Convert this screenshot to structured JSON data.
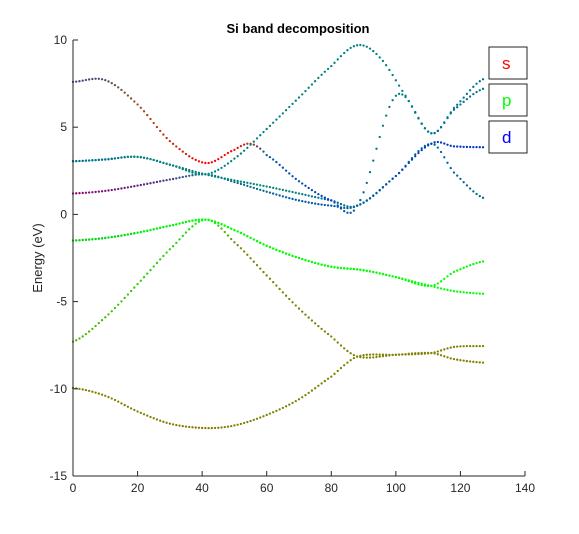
{
  "chart_data": {
    "type": "scatter",
    "title": "Si band decomposition",
    "xlabel": "",
    "ylabel": "Energy (eV)",
    "xlim": [
      0,
      140
    ],
    "ylim": [
      -15,
      10
    ],
    "xticks": [
      0,
      20,
      40,
      60,
      80,
      100,
      120,
      140
    ],
    "yticks": [
      -15,
      -10,
      -5,
      0,
      5,
      10
    ],
    "grid": false,
    "legend_placement": "top-right",
    "legend": [
      {
        "label": "s",
        "color": "#ff0000"
      },
      {
        "label": "p",
        "color": "#00ff00"
      },
      {
        "label": "d",
        "color": "#0000ff"
      }
    ],
    "series": [
      {
        "band": 1,
        "points": [
          {
            "x": 0,
            "y": -9.95,
            "s": 0.5,
            "p": 0.5,
            "d": 0.0
          },
          {
            "x": 10,
            "y": -10.4,
            "s": 0.5,
            "p": 0.5,
            "d": 0.0
          },
          {
            "x": 20,
            "y": -11.3,
            "s": 0.5,
            "p": 0.5,
            "d": 0.0
          },
          {
            "x": 30,
            "y": -12.0,
            "s": 0.5,
            "p": 0.5,
            "d": 0.0
          },
          {
            "x": 41,
            "y": -12.25,
            "s": 0.55,
            "p": 0.45,
            "d": 0.0
          },
          {
            "x": 50,
            "y": -12.1,
            "s": 0.5,
            "p": 0.5,
            "d": 0.0
          },
          {
            "x": 60,
            "y": -11.5,
            "s": 0.5,
            "p": 0.5,
            "d": 0.0
          },
          {
            "x": 70,
            "y": -10.6,
            "s": 0.5,
            "p": 0.5,
            "d": 0.0
          },
          {
            "x": 80,
            "y": -9.3,
            "s": 0.5,
            "p": 0.5,
            "d": 0.0
          },
          {
            "x": 88,
            "y": -8.15,
            "s": 0.5,
            "p": 0.5,
            "d": 0.0
          },
          {
            "x": 100,
            "y": -8.05,
            "s": 0.5,
            "p": 0.5,
            "d": 0.0
          },
          {
            "x": 111,
            "y": -7.95,
            "s": 0.5,
            "p": 0.5,
            "d": 0.0
          },
          {
            "x": 118,
            "y": -8.3,
            "s": 0.5,
            "p": 0.5,
            "d": 0.0
          },
          {
            "x": 127,
            "y": -8.5,
            "s": 0.5,
            "p": 0.5,
            "d": 0.0
          }
        ]
      },
      {
        "band": 2,
        "points": [
          {
            "x": 0,
            "y": -7.3,
            "s": 0.3,
            "p": 0.7,
            "d": 0.0
          },
          {
            "x": 10,
            "y": -5.9,
            "s": 0.25,
            "p": 0.75,
            "d": 0.0
          },
          {
            "x": 20,
            "y": -4.0,
            "s": 0.2,
            "p": 0.8,
            "d": 0.0
          },
          {
            "x": 30,
            "y": -2.0,
            "s": 0.15,
            "p": 0.85,
            "d": 0.0
          },
          {
            "x": 41,
            "y": -0.3,
            "s": 0.0,
            "p": 1.0,
            "d": 0.0
          },
          {
            "x": 50,
            "y": -1.6,
            "s": 0.45,
            "p": 0.55,
            "d": 0.0
          },
          {
            "x": 60,
            "y": -3.5,
            "s": 0.5,
            "p": 0.5,
            "d": 0.0
          },
          {
            "x": 70,
            "y": -5.4,
            "s": 0.5,
            "p": 0.5,
            "d": 0.0
          },
          {
            "x": 80,
            "y": -7.0,
            "s": 0.5,
            "p": 0.5,
            "d": 0.0
          },
          {
            "x": 88,
            "y": -8.15,
            "s": 0.5,
            "p": 0.5,
            "d": 0.0
          },
          {
            "x": 100,
            "y": -8.05,
            "s": 0.5,
            "p": 0.5,
            "d": 0.0
          },
          {
            "x": 111,
            "y": -7.95,
            "s": 0.5,
            "p": 0.5,
            "d": 0.0
          },
          {
            "x": 118,
            "y": -7.6,
            "s": 0.5,
            "p": 0.5,
            "d": 0.0
          },
          {
            "x": 127,
            "y": -7.55,
            "s": 0.5,
            "p": 0.5,
            "d": 0.0
          }
        ]
      },
      {
        "band": 3,
        "points": [
          {
            "x": 0,
            "y": -1.5,
            "s": 0.0,
            "p": 0.9,
            "d": 0.1
          },
          {
            "x": 10,
            "y": -1.35,
            "s": 0.0,
            "p": 0.9,
            "d": 0.1
          },
          {
            "x": 20,
            "y": -1.05,
            "s": 0.0,
            "p": 0.95,
            "d": 0.05
          },
          {
            "x": 30,
            "y": -0.65,
            "s": 0.0,
            "p": 0.95,
            "d": 0.05
          },
          {
            "x": 41,
            "y": -0.3,
            "s": 0.0,
            "p": 1.0,
            "d": 0.0
          },
          {
            "x": 50,
            "y": -0.9,
            "s": 0.0,
            "p": 1.0,
            "d": 0.0
          },
          {
            "x": 60,
            "y": -1.8,
            "s": 0.0,
            "p": 1.0,
            "d": 0.0
          },
          {
            "x": 70,
            "y": -2.5,
            "s": 0.0,
            "p": 1.0,
            "d": 0.0
          },
          {
            "x": 80,
            "y": -3.0,
            "s": 0.0,
            "p": 1.0,
            "d": 0.0
          },
          {
            "x": 90,
            "y": -3.2,
            "s": 0.0,
            "p": 1.0,
            "d": 0.0
          },
          {
            "x": 100,
            "y": -3.6,
            "s": 0.0,
            "p": 1.0,
            "d": 0.0
          },
          {
            "x": 111,
            "y": -4.1,
            "s": 0.0,
            "p": 1.0,
            "d": 0.0
          },
          {
            "x": 118,
            "y": -3.3,
            "s": 0.0,
            "p": 1.0,
            "d": 0.0
          },
          {
            "x": 127,
            "y": -2.7,
            "s": 0.0,
            "p": 1.0,
            "d": 0.0
          }
        ]
      },
      {
        "band": 4,
        "points": [
          {
            "x": 0,
            "y": -1.5,
            "s": 0.0,
            "p": 0.9,
            "d": 0.1
          },
          {
            "x": 10,
            "y": -1.35,
            "s": 0.0,
            "p": 0.9,
            "d": 0.1
          },
          {
            "x": 20,
            "y": -1.05,
            "s": 0.0,
            "p": 0.95,
            "d": 0.05
          },
          {
            "x": 30,
            "y": -0.65,
            "s": 0.0,
            "p": 0.95,
            "d": 0.05
          },
          {
            "x": 41,
            "y": -0.3,
            "s": 0.0,
            "p": 1.0,
            "d": 0.0
          },
          {
            "x": 50,
            "y": -0.9,
            "s": 0.0,
            "p": 1.0,
            "d": 0.0
          },
          {
            "x": 60,
            "y": -1.8,
            "s": 0.0,
            "p": 1.0,
            "d": 0.0
          },
          {
            "x": 70,
            "y": -2.5,
            "s": 0.0,
            "p": 1.0,
            "d": 0.0
          },
          {
            "x": 80,
            "y": -3.0,
            "s": 0.0,
            "p": 1.0,
            "d": 0.0
          },
          {
            "x": 90,
            "y": -3.2,
            "s": 0.0,
            "p": 1.0,
            "d": 0.0
          },
          {
            "x": 100,
            "y": -3.6,
            "s": 0.0,
            "p": 1.0,
            "d": 0.0
          },
          {
            "x": 111,
            "y": -4.1,
            "s": 0.0,
            "p": 1.0,
            "d": 0.0
          },
          {
            "x": 118,
            "y": -4.4,
            "s": 0.0,
            "p": 1.0,
            "d": 0.0
          },
          {
            "x": 127,
            "y": -4.55,
            "s": 0.0,
            "p": 1.0,
            "d": 0.0
          }
        ]
      },
      {
        "band": 5,
        "points": [
          {
            "x": 0,
            "y": 1.2,
            "s": 0.55,
            "p": 0.0,
            "d": 0.45
          },
          {
            "x": 10,
            "y": 1.35,
            "s": 0.5,
            "p": 0.05,
            "d": 0.45
          },
          {
            "x": 20,
            "y": 1.65,
            "s": 0.4,
            "p": 0.1,
            "d": 0.5
          },
          {
            "x": 30,
            "y": 2.0,
            "s": 0.25,
            "p": 0.25,
            "d": 0.5
          },
          {
            "x": 41,
            "y": 2.3,
            "s": 0.0,
            "p": 0.5,
            "d": 0.5
          },
          {
            "x": 50,
            "y": 1.85,
            "s": 0.0,
            "p": 0.45,
            "d": 0.55
          },
          {
            "x": 60,
            "y": 1.3,
            "s": 0.0,
            "p": 0.4,
            "d": 0.6
          },
          {
            "x": 70,
            "y": 0.8,
            "s": 0.0,
            "p": 0.35,
            "d": 0.65
          },
          {
            "x": 80,
            "y": 0.5,
            "s": 0.0,
            "p": 0.35,
            "d": 0.65
          },
          {
            "x": 88,
            "y": 0.5,
            "s": 0.0,
            "p": 0.4,
            "d": 0.6
          },
          {
            "x": 100,
            "y": 2.2,
            "s": 0.0,
            "p": 0.4,
            "d": 0.6
          },
          {
            "x": 111,
            "y": 4.05,
            "s": 0.0,
            "p": 0.4,
            "d": 0.6
          },
          {
            "x": 118,
            "y": 2.4,
            "s": 0.0,
            "p": 0.4,
            "d": 0.6
          },
          {
            "x": 127,
            "y": 0.95,
            "s": 0.0,
            "p": 0.4,
            "d": 0.6
          }
        ]
      },
      {
        "band": 6,
        "points": [
          {
            "x": 0,
            "y": 3.05,
            "s": 0.0,
            "p": 0.4,
            "d": 0.6
          },
          {
            "x": 10,
            "y": 3.15,
            "s": 0.0,
            "p": 0.45,
            "d": 0.55
          },
          {
            "x": 20,
            "y": 3.3,
            "s": 0.0,
            "p": 0.45,
            "d": 0.55
          },
          {
            "x": 30,
            "y": 2.85,
            "s": 0.0,
            "p": 0.5,
            "d": 0.5
          },
          {
            "x": 41,
            "y": 2.3,
            "s": 0.0,
            "p": 0.5,
            "d": 0.5
          },
          {
            "x": 50,
            "y": 1.95,
            "s": 0.0,
            "p": 0.5,
            "d": 0.5
          },
          {
            "x": 60,
            "y": 1.6,
            "s": 0.0,
            "p": 0.55,
            "d": 0.45
          },
          {
            "x": 70,
            "y": 1.2,
            "s": 0.0,
            "p": 0.5,
            "d": 0.5
          },
          {
            "x": 80,
            "y": 0.8,
            "s": 0.0,
            "p": 0.4,
            "d": 0.6
          },
          {
            "x": 88,
            "y": 0.5,
            "s": 0.0,
            "p": 0.4,
            "d": 0.6
          },
          {
            "x": 100,
            "y": 2.2,
            "s": 0.0,
            "p": 0.3,
            "d": 0.7
          },
          {
            "x": 111,
            "y": 4.05,
            "s": 0.0,
            "p": 0.2,
            "d": 0.8
          },
          {
            "x": 118,
            "y": 3.9,
            "s": 0.0,
            "p": 0.2,
            "d": 0.8
          },
          {
            "x": 127,
            "y": 3.85,
            "s": 0.0,
            "p": 0.2,
            "d": 0.8
          }
        ]
      },
      {
        "band": 7,
        "points": [
          {
            "x": 0,
            "y": 7.6,
            "s": 0.25,
            "p": 0.25,
            "d": 0.5
          },
          {
            "x": 10,
            "y": 7.7,
            "s": 0.3,
            "p": 0.3,
            "d": 0.4
          },
          {
            "x": 20,
            "y": 6.3,
            "s": 0.6,
            "p": 0.3,
            "d": 0.1
          },
          {
            "x": 30,
            "y": 4.2,
            "s": 0.75,
            "p": 0.2,
            "d": 0.05
          },
          {
            "x": 41,
            "y": 2.95,
            "s": 1.0,
            "p": 0.0,
            "d": 0.0
          },
          {
            "x": 50,
            "y": 3.7,
            "s": 0.95,
            "p": 0.05,
            "d": 0.0
          },
          {
            "x": 55,
            "y": 4.05,
            "s": 0.7,
            "p": 0.2,
            "d": 0.1
          },
          {
            "x": 60,
            "y": 3.4,
            "s": 0.0,
            "p": 0.35,
            "d": 0.65
          },
          {
            "x": 70,
            "y": 1.9,
            "s": 0.0,
            "p": 0.3,
            "d": 0.7
          },
          {
            "x": 80,
            "y": 0.8,
            "s": 0.0,
            "p": 0.25,
            "d": 0.75
          },
          {
            "x": 88,
            "y": 0.5,
            "s": 0.0,
            "p": 0.4,
            "d": 0.6
          },
          {
            "x": 100,
            "y": 6.8,
            "s": 0.0,
            "p": 0.5,
            "d": 0.5
          },
          {
            "x": 111,
            "y": 4.65,
            "s": 0.0,
            "p": 0.4,
            "d": 0.6
          },
          {
            "x": 118,
            "y": 6.0,
            "s": 0.0,
            "p": 0.45,
            "d": 0.55
          },
          {
            "x": 127,
            "y": 7.2,
            "s": 0.0,
            "p": 0.45,
            "d": 0.55
          }
        ]
      },
      {
        "band": 8,
        "points": [
          {
            "x": 0,
            "y": 3.05,
            "s": 0.0,
            "p": 0.45,
            "d": 0.55
          },
          {
            "x": 10,
            "y": 3.15,
            "s": 0.0,
            "p": 0.45,
            "d": 0.55
          },
          {
            "x": 20,
            "y": 3.3,
            "s": 0.0,
            "p": 0.5,
            "d": 0.5
          },
          {
            "x": 30,
            "y": 2.85,
            "s": 0.0,
            "p": 0.5,
            "d": 0.5
          },
          {
            "x": 41,
            "y": 2.3,
            "s": 0.0,
            "p": 0.5,
            "d": 0.5
          },
          {
            "x": 50,
            "y": 3.2,
            "s": 0.0,
            "p": 0.5,
            "d": 0.5
          },
          {
            "x": 60,
            "y": 4.9,
            "s": 0.0,
            "p": 0.5,
            "d": 0.5
          },
          {
            "x": 70,
            "y": 6.7,
            "s": 0.0,
            "p": 0.5,
            "d": 0.5
          },
          {
            "x": 80,
            "y": 8.5,
            "s": 0.0,
            "p": 0.5,
            "d": 0.5
          },
          {
            "x": 88,
            "y": 9.7,
            "s": 0.0,
            "p": 0.5,
            "d": 0.5
          },
          {
            "x": 95,
            "y": 9.0,
            "s": 0.0,
            "p": 0.5,
            "d": 0.5
          },
          {
            "x": 103,
            "y": 6.8,
            "s": 0.0,
            "p": 0.5,
            "d": 0.5
          },
          {
            "x": 111,
            "y": 4.65,
            "s": 0.0,
            "p": 0.45,
            "d": 0.55
          },
          {
            "x": 118,
            "y": 6.1,
            "s": 0.0,
            "p": 0.45,
            "d": 0.55
          },
          {
            "x": 127,
            "y": 7.75,
            "s": 0.0,
            "p": 0.45,
            "d": 0.55
          }
        ]
      }
    ]
  }
}
